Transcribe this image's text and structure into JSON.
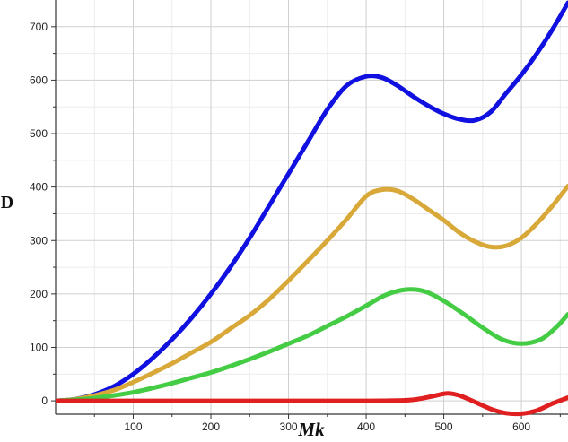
{
  "chart_data": {
    "type": "line",
    "title": "",
    "xlabel": "Mk",
    "ylabel": "D",
    "xlim": [
      0,
      660
    ],
    "ylim": [
      -25,
      750
    ],
    "x_ticks": [
      100,
      200,
      300,
      400,
      500,
      600
    ],
    "x_tick_labels": [
      "100",
      "200",
      "300",
      "400",
      "500",
      "600"
    ],
    "y_ticks": [
      0,
      100,
      200,
      300,
      400,
      500,
      600,
      700
    ],
    "y_tick_labels": [
      "0",
      "100",
      "200",
      "300",
      "400",
      "500",
      "600",
      "700"
    ],
    "grid": true,
    "legend": "none",
    "series": [
      {
        "color": "#1010e0",
        "x": [
          0,
          25,
          50,
          75,
          100,
          125,
          150,
          175,
          200,
          225,
          250,
          275,
          300,
          325,
          350,
          375,
          400,
          420,
          440,
          460,
          480,
          500,
          520,
          540,
          560,
          580,
          600,
          620,
          640,
          660
        ],
        "y": [
          0,
          3,
          12,
          27,
          50,
          80,
          115,
          155,
          200,
          250,
          305,
          365,
          425,
          485,
          545,
          590,
          607,
          605,
          590,
          570,
          552,
          537,
          527,
          525,
          540,
          575,
          610,
          650,
          695,
          745
        ]
      },
      {
        "color": "#d8a838",
        "x": [
          0,
          25,
          50,
          75,
          100,
          125,
          150,
          175,
          200,
          225,
          250,
          275,
          300,
          325,
          350,
          375,
          400,
          420,
          440,
          460,
          480,
          500,
          520,
          540,
          560,
          580,
          600,
          620,
          640,
          660
        ],
        "y": [
          0,
          3,
          10,
          20,
          35,
          52,
          70,
          90,
          110,
          135,
          160,
          190,
          225,
          262,
          300,
          340,
          383,
          395,
          393,
          378,
          358,
          338,
          315,
          298,
          288,
          290,
          305,
          332,
          365,
          402
        ]
      },
      {
        "color": "#44cc44",
        "x": [
          0,
          25,
          50,
          75,
          100,
          125,
          150,
          175,
          200,
          225,
          250,
          275,
          300,
          325,
          350,
          375,
          400,
          425,
          450,
          475,
          500,
          525,
          550,
          575,
          600,
          625,
          645,
          660
        ],
        "y": [
          0,
          2,
          5,
          10,
          16,
          24,
          33,
          43,
          53,
          65,
          78,
          92,
          107,
          122,
          140,
          158,
          178,
          198,
          208,
          205,
          187,
          163,
          137,
          115,
          107,
          115,
          138,
          162
        ]
      },
      {
        "color": "#e02020",
        "x": [
          0,
          100,
          200,
          300,
          400,
          450,
          470,
          490,
          505,
          520,
          540,
          560,
          580,
          600,
          620,
          640,
          660
        ],
        "y": [
          0,
          0,
          0,
          0,
          0,
          1,
          4,
          10,
          14,
          10,
          -2,
          -15,
          -23,
          -24,
          -18,
          -5,
          6
        ]
      }
    ]
  }
}
